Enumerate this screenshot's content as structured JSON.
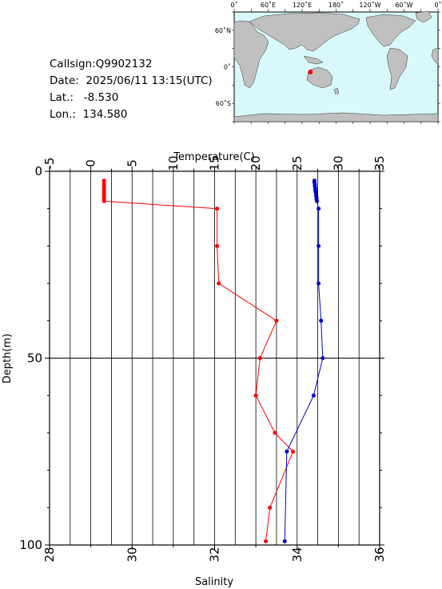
{
  "info": {
    "callsign": "Callsign:Q9902132",
    "date": "Date:  2025/06/11 13:15(UTC)",
    "lat": "Lat.:   -8.530",
    "lon": "Lon.:  134.580"
  },
  "map": {
    "top_labels": [
      "0˚",
      "60˚E",
      "120˚E",
      "180˚",
      "120˚W",
      "60˚W",
      "0˚"
    ],
    "left_labels": [
      "60˚N",
      "0˚",
      "60˚S"
    ],
    "ocean_color": "#d8f8fc",
    "land_color": "#c0c0c0",
    "marker_color": "#ff0000",
    "float_lon": 134.58,
    "float_lat": -8.53
  },
  "chart_data": {
    "type": "line",
    "top_axis": {
      "label": "Temperature(C)",
      "range": [
        -5,
        35
      ],
      "ticks": [
        "-5",
        "0",
        "5",
        "10",
        "15",
        "20",
        "25",
        "30",
        "35"
      ]
    },
    "bottom_axis": {
      "label": "Salinity",
      "range": [
        28,
        36
      ],
      "ticks": [
        "28",
        "30",
        "32",
        "34",
        "36"
      ]
    },
    "y_axis": {
      "label": "Depth(m)",
      "range": [
        0,
        100
      ],
      "inverted": true,
      "ticks": [
        "0",
        "50",
        "100"
      ]
    },
    "grid": true,
    "series": [
      {
        "name": "Temperature",
        "axis": "top",
        "color": "#ff0000",
        "points": [
          [
            1.6,
            2.5
          ],
          [
            1.6,
            3
          ],
          [
            1.6,
            3.5
          ],
          [
            1.6,
            4
          ],
          [
            1.6,
            4.5
          ],
          [
            1.6,
            5
          ],
          [
            1.6,
            5.5
          ],
          [
            1.6,
            6
          ],
          [
            1.6,
            6.5
          ],
          [
            1.6,
            7
          ],
          [
            1.6,
            7.5
          ],
          [
            1.6,
            8
          ],
          [
            15.3,
            10
          ],
          [
            15.3,
            20
          ],
          [
            15.5,
            30
          ],
          [
            22.5,
            40
          ],
          [
            20.5,
            50
          ],
          [
            20.0,
            60
          ],
          [
            22.3,
            70
          ],
          [
            24.5,
            75
          ],
          [
            21.7,
            90
          ],
          [
            21.2,
            99
          ]
        ]
      },
      {
        "name": "Salinity",
        "axis": "bottom",
        "color": "#0000cc",
        "points": [
          [
            34.42,
            2.5
          ],
          [
            34.42,
            3
          ],
          [
            34.43,
            3.5
          ],
          [
            34.43,
            4
          ],
          [
            34.44,
            4.5
          ],
          [
            34.44,
            5
          ],
          [
            34.45,
            5.5
          ],
          [
            34.46,
            6
          ],
          [
            34.46,
            6.5
          ],
          [
            34.47,
            7
          ],
          [
            34.47,
            7.5
          ],
          [
            34.48,
            8
          ],
          [
            34.52,
            10
          ],
          [
            34.52,
            20
          ],
          [
            34.52,
            30
          ],
          [
            34.58,
            40
          ],
          [
            34.62,
            50
          ],
          [
            34.4,
            60
          ],
          [
            33.75,
            75
          ],
          [
            33.7,
            99
          ]
        ]
      }
    ]
  }
}
